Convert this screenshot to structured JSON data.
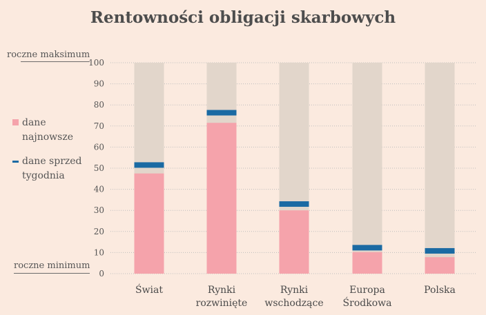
{
  "chart_data": {
    "type": "bar",
    "title": "Rentowności obligacji skarbowych",
    "categories": [
      [
        "Świat"
      ],
      [
        "Rynki",
        "rozwinięte"
      ],
      [
        "Rynki",
        "wschodzące"
      ],
      [
        "Europa",
        "Środkowa"
      ],
      [
        "Polska"
      ]
    ],
    "series": [
      {
        "name": "dane najnowsze",
        "values": [
          47.5,
          71.5,
          30,
          10.2,
          7.8
        ]
      },
      {
        "name": "dane sprzed tygodnia",
        "values": [
          51.5,
          76.3,
          33,
          12.3,
          10.8
        ]
      }
    ],
    "range_values": [
      100,
      100,
      100,
      100,
      100
    ],
    "ylim": [
      0,
      100
    ],
    "yticks": [
      0,
      10,
      20,
      30,
      40,
      50,
      60,
      70,
      80,
      90,
      100
    ],
    "grid": true,
    "legend_position": "left",
    "annotations": {
      "top": "roczne maksimum",
      "bottom": "roczne minimum"
    },
    "legend": {
      "latest": [
        "dane",
        "najnowsze"
      ],
      "week_ago": [
        "dane sprzed",
        "tygodnia"
      ]
    },
    "colors": {
      "background": "#fbeadf",
      "range": "#e2d6cb",
      "latest": "#f5a3ab",
      "week_ago": "#1a6aa3",
      "grid": "#bdbdbd",
      "title": "#4d4d4d"
    }
  }
}
